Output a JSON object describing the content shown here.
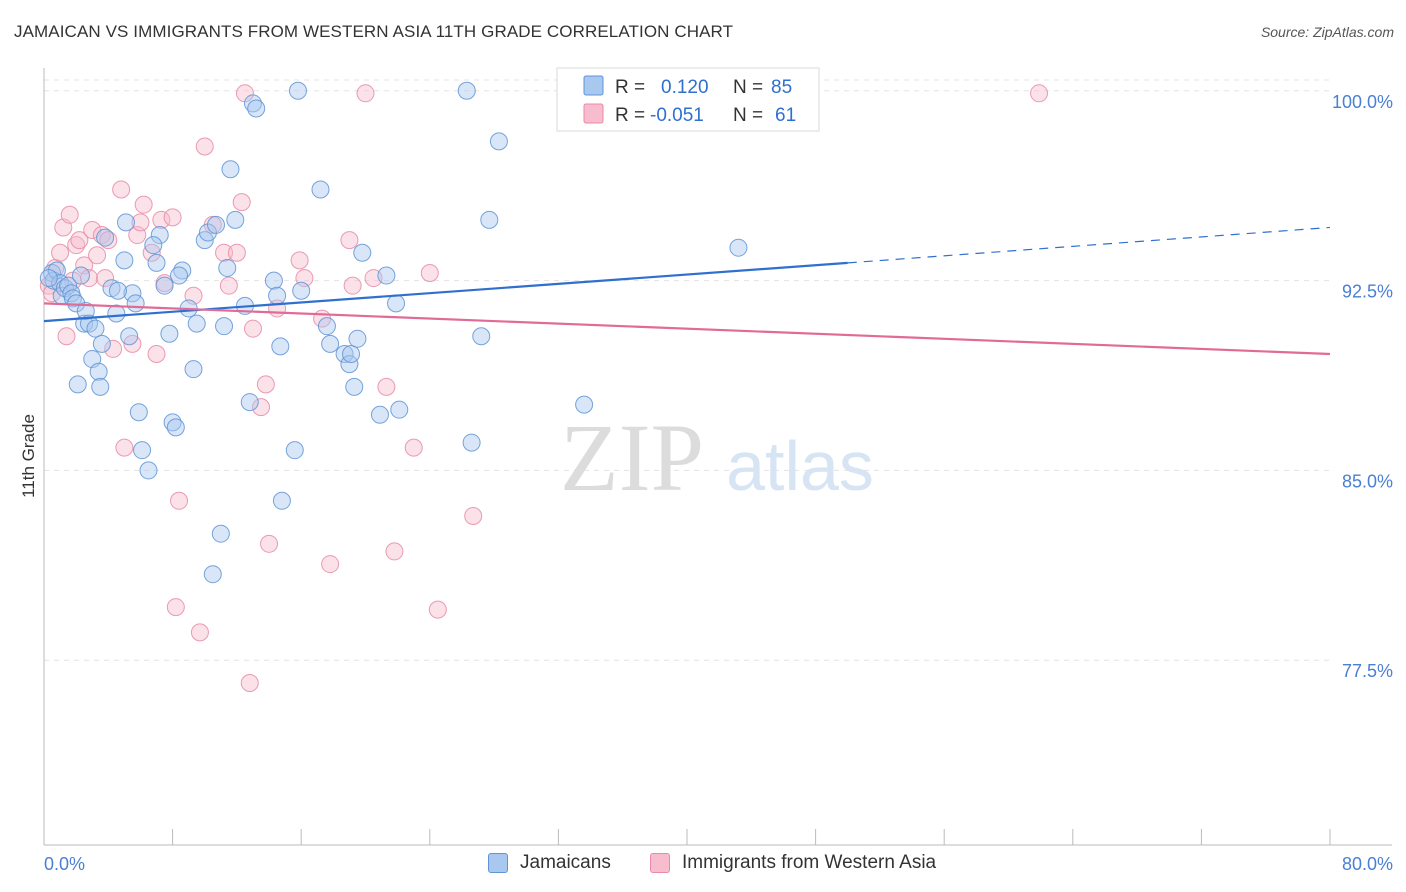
{
  "header": {
    "title": "JAMAICAN VS IMMIGRANTS FROM WESTERN ASIA 11TH GRADE CORRELATION CHART",
    "source": "Source: ZipAtlas.com"
  },
  "watermark": {
    "zip": "ZIP",
    "atlas": "atlas"
  },
  "stats": {
    "r_label": "R =",
    "n_label": "N =",
    "rows": [
      {
        "r": "0.120",
        "n": "85"
      },
      {
        "r": "-0.051",
        "n": "61"
      }
    ]
  },
  "legend": {
    "items": [
      {
        "label": "Jamaicans"
      },
      {
        "label": "Immigrants from Western Asia"
      }
    ]
  },
  "colors": {
    "blue_fill": "#a8c8f0",
    "blue_stroke": "#5f94d6",
    "blue_line": "#2f70cf",
    "pink_fill": "#f7bccd",
    "pink_stroke": "#e88aa8",
    "pink_line": "#e06b96",
    "tick_label": "#4a7fd1"
  },
  "chart_data": {
    "type": "scatter",
    "title": "JAMAICAN VS IMMIGRANTS FROM WESTERN ASIA 11TH GRADE CORRELATION CHART",
    "xlabel": "",
    "ylabel": "11th Grade",
    "xlim": [
      0,
      80
    ],
    "ylim": [
      70.2,
      100.9
    ],
    "x_tick_labels": [
      "0.0%",
      "80.0%"
    ],
    "y_ticks": [
      77.5,
      85.0,
      92.5,
      100.0
    ],
    "y_tick_labels": [
      "77.5%",
      "85.0%",
      "92.5%",
      "100.0%"
    ],
    "grid": true,
    "legend_position": "bottom",
    "series": [
      {
        "name": "Jamaicans",
        "r": 0.12,
        "n": 85,
        "trend": {
          "x0": 0,
          "y0": 90.9,
          "x1": 50,
          "y1": 93.2,
          "dashed_to_x": 80,
          "dashed_to_y": 94.6
        },
        "points": [
          [
            0.5,
            92.8
          ],
          [
            0.6,
            92.5
          ],
          [
            0.8,
            92.9
          ],
          [
            1.0,
            92.4
          ],
          [
            1.1,
            91.9
          ],
          [
            1.3,
            92.2
          ],
          [
            1.5,
            92.3
          ],
          [
            1.7,
            92.0
          ],
          [
            1.8,
            91.8
          ],
          [
            2.0,
            91.6
          ],
          [
            2.3,
            92.7
          ],
          [
            2.5,
            90.8
          ],
          [
            2.6,
            91.3
          ],
          [
            2.8,
            90.8
          ],
          [
            3.0,
            89.4
          ],
          [
            3.2,
            90.6
          ],
          [
            3.4,
            88.9
          ],
          [
            3.6,
            90.0
          ],
          [
            3.8,
            94.2
          ],
          [
            4.2,
            92.2
          ],
          [
            4.5,
            91.2
          ],
          [
            5.0,
            93.3
          ],
          [
            5.1,
            94.8
          ],
          [
            5.3,
            90.3
          ],
          [
            5.5,
            92.0
          ],
          [
            5.7,
            91.6
          ],
          [
            5.9,
            87.3
          ],
          [
            6.1,
            85.8
          ],
          [
            6.5,
            85.0
          ],
          [
            7.0,
            93.2
          ],
          [
            7.2,
            94.3
          ],
          [
            7.5,
            92.3
          ],
          [
            7.8,
            90.4
          ],
          [
            8.0,
            86.9
          ],
          [
            8.2,
            86.7
          ],
          [
            8.6,
            92.9
          ],
          [
            9.0,
            91.4
          ],
          [
            9.3,
            89.0
          ],
          [
            9.5,
            90.8
          ],
          [
            10.0,
            94.1
          ],
          [
            10.2,
            94.4
          ],
          [
            10.7,
            94.7
          ],
          [
            11.2,
            90.7
          ],
          [
            11.4,
            93.0
          ],
          [
            11.6,
            96.9
          ],
          [
            11.9,
            94.9
          ],
          [
            12.5,
            91.5
          ],
          [
            12.8,
            87.7
          ],
          [
            13.0,
            99.5
          ],
          [
            13.2,
            99.3
          ],
          [
            14.3,
            92.5
          ],
          [
            14.5,
            91.9
          ],
          [
            14.7,
            89.9
          ],
          [
            14.8,
            83.8
          ],
          [
            15.6,
            85.8
          ],
          [
            15.8,
            100.0
          ],
          [
            16.0,
            92.1
          ],
          [
            17.2,
            96.1
          ],
          [
            17.6,
            90.7
          ],
          [
            17.8,
            90.0
          ],
          [
            18.7,
            89.6
          ],
          [
            19.0,
            89.2
          ],
          [
            19.1,
            89.6
          ],
          [
            19.3,
            88.3
          ],
          [
            19.5,
            90.2
          ],
          [
            19.8,
            93.6
          ],
          [
            20.9,
            87.2
          ],
          [
            21.3,
            92.7
          ],
          [
            21.9,
            91.6
          ],
          [
            22.1,
            87.4
          ],
          [
            26.3,
            100.0
          ],
          [
            26.6,
            86.1
          ],
          [
            27.2,
            90.3
          ],
          [
            27.7,
            94.9
          ],
          [
            28.3,
            98.0
          ],
          [
            33.6,
            87.6
          ],
          [
            43.2,
            93.8
          ],
          [
            11.0,
            82.5
          ],
          [
            10.5,
            80.9
          ],
          [
            3.5,
            88.3
          ],
          [
            6.8,
            93.9
          ],
          [
            8.4,
            92.7
          ],
          [
            0.3,
            92.6
          ],
          [
            2.1,
            88.4
          ],
          [
            4.6,
            92.1
          ]
        ]
      },
      {
        "name": "Immigrants from Western Asia",
        "r": -0.051,
        "n": 61,
        "trend": {
          "x0": 0,
          "y0": 91.6,
          "x1": 80,
          "y1": 89.6
        },
        "points": [
          [
            0.3,
            92.3
          ],
          [
            0.5,
            92.0
          ],
          [
            0.7,
            93.0
          ],
          [
            1.0,
            93.6
          ],
          [
            1.2,
            94.6
          ],
          [
            1.4,
            90.3
          ],
          [
            1.6,
            95.1
          ],
          [
            1.8,
            92.5
          ],
          [
            2.0,
            93.9
          ],
          [
            2.2,
            94.1
          ],
          [
            2.5,
            93.1
          ],
          [
            2.8,
            92.6
          ],
          [
            3.0,
            94.5
          ],
          [
            3.3,
            93.5
          ],
          [
            3.6,
            94.3
          ],
          [
            3.8,
            92.6
          ],
          [
            4.0,
            94.1
          ],
          [
            4.3,
            89.8
          ],
          [
            4.8,
            96.1
          ],
          [
            5.0,
            85.9
          ],
          [
            5.5,
            90.0
          ],
          [
            5.8,
            94.3
          ],
          [
            6.0,
            94.8
          ],
          [
            6.2,
            95.5
          ],
          [
            6.7,
            93.6
          ],
          [
            7.0,
            89.6
          ],
          [
            7.3,
            94.9
          ],
          [
            7.5,
            92.4
          ],
          [
            8.0,
            95.0
          ],
          [
            8.4,
            83.8
          ],
          [
            8.2,
            79.6
          ],
          [
            9.3,
            91.9
          ],
          [
            9.7,
            78.6
          ],
          [
            10.0,
            97.8
          ],
          [
            10.5,
            94.7
          ],
          [
            11.2,
            93.6
          ],
          [
            11.5,
            92.3
          ],
          [
            12.0,
            93.6
          ],
          [
            12.3,
            95.6
          ],
          [
            12.5,
            99.9
          ],
          [
            13.0,
            90.6
          ],
          [
            13.5,
            87.5
          ],
          [
            13.8,
            88.4
          ],
          [
            14.0,
            82.1
          ],
          [
            14.5,
            91.4
          ],
          [
            15.9,
            93.3
          ],
          [
            16.2,
            92.6
          ],
          [
            17.3,
            91.0
          ],
          [
            17.8,
            81.3
          ],
          [
            19.0,
            94.1
          ],
          [
            19.2,
            92.3
          ],
          [
            20.5,
            92.6
          ],
          [
            21.3,
            88.3
          ],
          [
            21.8,
            81.8
          ],
          [
            23.0,
            85.9
          ],
          [
            24.0,
            92.8
          ],
          [
            24.5,
            79.5
          ],
          [
            26.7,
            83.2
          ],
          [
            12.8,
            76.6
          ],
          [
            20.0,
            99.9
          ],
          [
            61.9,
            99.9
          ]
        ]
      }
    ]
  }
}
